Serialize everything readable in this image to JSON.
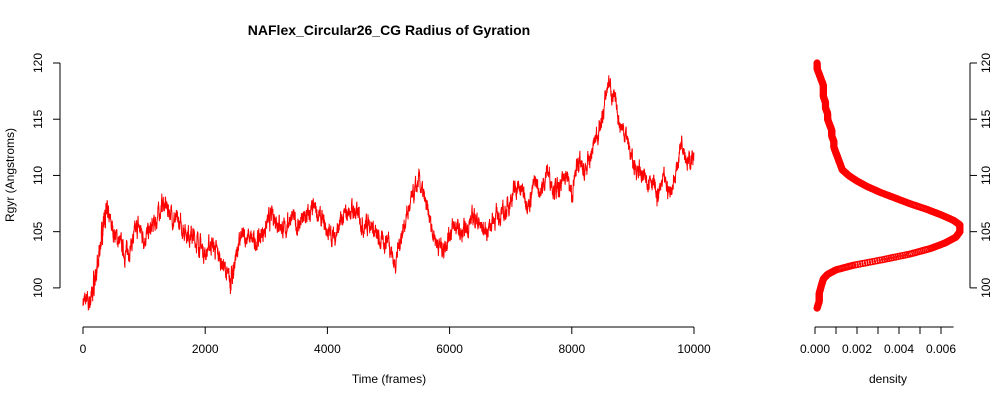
{
  "chart_data": [
    {
      "type": "line",
      "title": "NAFlex_Circular26_CG Radius of Gyration",
      "xlabel": "Time (frames)",
      "ylabel": "Rgyr (Angstroms)",
      "xlim": [
        0,
        10000
      ],
      "ylim": [
        97.5,
        120
      ],
      "xticks": [
        "0",
        "2000",
        "4000",
        "6000",
        "8000",
        "10000"
      ],
      "yticks": [
        "100",
        "105",
        "110",
        "115",
        "120"
      ],
      "grid": false,
      "color": "#ff0000",
      "series": [
        {
          "x": [
            0,
            100,
            150,
            200,
            250,
            300,
            350,
            400,
            500,
            600,
            700,
            800,
            900,
            1000,
            1100,
            1200,
            1300,
            1400,
            1500,
            1600,
            1700,
            1800,
            1900,
            2000,
            2100,
            2200,
            2300,
            2400,
            2450,
            2500,
            2600,
            2700,
            2800,
            2900,
            3000,
            3100,
            3200,
            3300,
            3400,
            3500,
            3600,
            3700,
            3800,
            3900,
            4000,
            4100,
            4200,
            4300,
            4400,
            4500,
            4600,
            4700,
            4800,
            4900,
            5000,
            5100,
            5200,
            5300,
            5400,
            5500,
            5600,
            5700,
            5800,
            5900,
            6000,
            6100,
            6200,
            6300,
            6400,
            6500,
            6600,
            6700,
            6800,
            6900,
            7000,
            7100,
            7200,
            7300,
            7400,
            7500,
            7600,
            7700,
            7800,
            7900,
            8000,
            8100,
            8200,
            8300,
            8400,
            8500,
            8600,
            8700,
            8800,
            8900,
            9000,
            9100,
            9200,
            9300,
            9400,
            9500,
            9600,
            9700,
            9800,
            9900,
            10000
          ],
          "values": [
            99,
            98.5,
            99.5,
            101,
            102,
            104.5,
            106.5,
            106.5,
            105,
            104,
            103,
            104,
            105.5,
            104.5,
            105,
            106,
            107.5,
            107,
            106,
            105.5,
            105,
            104.5,
            104,
            103,
            104,
            103,
            102,
            100.5,
            101,
            103,
            104.5,
            104.5,
            104,
            104.5,
            105.5,
            106.5,
            106,
            105,
            106.5,
            105.5,
            106,
            106.5,
            107,
            106,
            105,
            104.5,
            105.5,
            106.5,
            107,
            106.5,
            105.5,
            106,
            104.5,
            104,
            104.5,
            102,
            104.5,
            106.5,
            108,
            109.5,
            107.5,
            105.5,
            104,
            103.5,
            105,
            105.5,
            104.5,
            105.5,
            106.5,
            105.5,
            105,
            106,
            106.5,
            106.5,
            108,
            109,
            108.5,
            107.5,
            109.5,
            108.5,
            110.5,
            109,
            108.5,
            110.5,
            108,
            111.5,
            110,
            111.5,
            113.5,
            115,
            118.5,
            116.5,
            114.5,
            113.5,
            111,
            110.5,
            109.5,
            110,
            108,
            109.5,
            108.5,
            110,
            113.5,
            111,
            112
          ]
        }
      ]
    },
    {
      "type": "line",
      "xlabel": "density",
      "xlim": [
        0,
        0.007
      ],
      "ylim": [
        97.5,
        120
      ],
      "xticks": [
        "0.000",
        "0.002",
        "0.004",
        "0.006"
      ],
      "yticks": [
        "100",
        "105",
        "110",
        "115",
        "120"
      ],
      "grid": false,
      "color": "#ff0000",
      "series": [
        {
          "y": [
            98.2,
            98.8,
            99.5,
            100.2,
            100.8,
            101.2,
            101.6,
            102,
            102.5,
            103,
            103.5,
            104,
            104.5,
            105,
            105.6,
            106,
            106.5,
            107,
            107.5,
            108,
            108.5,
            109,
            109.5,
            110,
            110.5,
            111,
            111.5,
            112,
            112.5,
            113,
            113.5,
            114,
            114.5,
            115,
            115.5,
            116,
            116.5,
            117,
            117.5,
            118,
            118.5,
            119,
            119.5,
            120
          ],
          "density": [
            0.0001,
            0.0002,
            0.0002,
            0.0003,
            0.0004,
            0.0006,
            0.001,
            0.0018,
            0.0032,
            0.0045,
            0.0055,
            0.0062,
            0.0067,
            0.0069,
            0.0069,
            0.0066,
            0.006,
            0.0053,
            0.0045,
            0.0038,
            0.0031,
            0.0025,
            0.002,
            0.0016,
            0.0013,
            0.0012,
            0.0011,
            0.001,
            0.0009,
            0.0009,
            0.0008,
            0.0008,
            0.0007,
            0.0006,
            0.0006,
            0.0005,
            0.0005,
            0.0004,
            0.0004,
            0.0004,
            0.0003,
            0.0002,
            0.0001,
            0.0001
          ]
        }
      ]
    }
  ]
}
